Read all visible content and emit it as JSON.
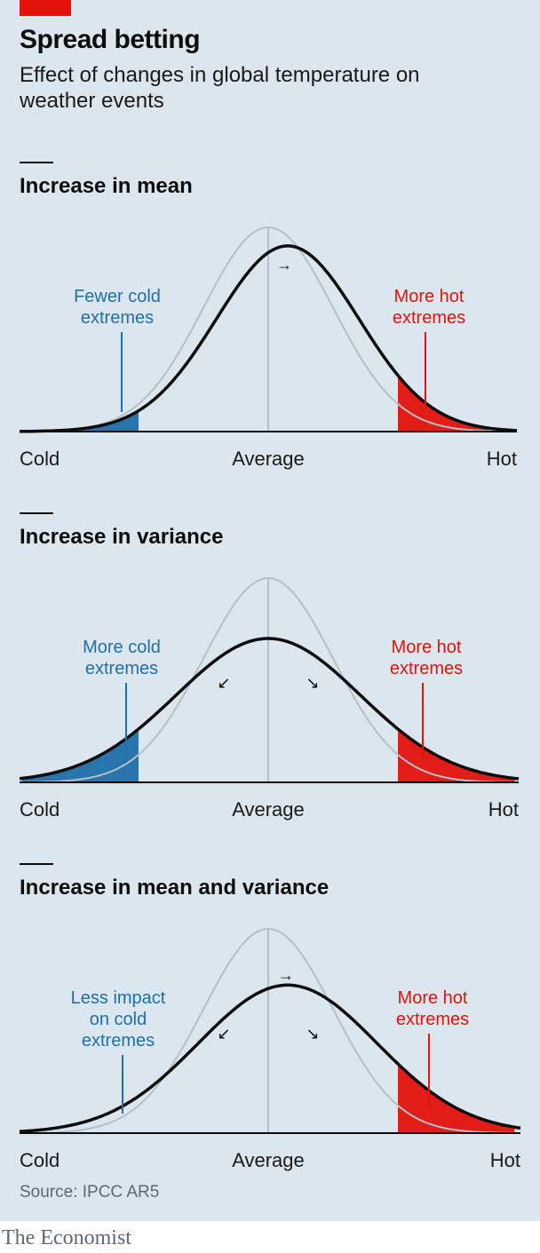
{
  "title": "Spread betting",
  "subtitle": "Effect of changes in global temperature on weather events",
  "source": "Source: IPCC AR5",
  "brand": "The Economist",
  "colors": {
    "background": "#dbe6ee",
    "baseline_curve": "#b3c0c8",
    "new_curve": "#0d0d0d",
    "cold": "#1f6fa8",
    "hot": "#e3120b",
    "accent_tag": "#e3120b"
  },
  "chart_data": [
    {
      "type": "area",
      "title": "Increase in mean",
      "x_tick_labels": [
        "Cold",
        "Average",
        "Hot"
      ],
      "baseline_distribution": {
        "mean": 0,
        "sd": 1
      },
      "shifted_distribution": {
        "mean": 0.3,
        "sd": 1.1
      },
      "arrows": [
        "→"
      ],
      "annotations": [
        {
          "side": "cold",
          "text": [
            "Fewer cold",
            "extremes"
          ]
        },
        {
          "side": "hot",
          "text": [
            "More hot",
            "extremes"
          ]
        }
      ]
    },
    {
      "type": "area",
      "title": "Increase in variance",
      "x_tick_labels": [
        "Cold",
        "Average",
        "Hot"
      ],
      "baseline_distribution": {
        "mean": 0,
        "sd": 1
      },
      "shifted_distribution": {
        "mean": 0,
        "sd": 1.42
      },
      "arrows": [
        "↙",
        "↘"
      ],
      "annotations": [
        {
          "side": "cold",
          "text": [
            "More cold",
            "extremes"
          ]
        },
        {
          "side": "hot",
          "text": [
            "More hot",
            "extremes"
          ]
        }
      ]
    },
    {
      "type": "area",
      "title": "Increase in mean and variance",
      "x_tick_labels": [
        "Cold",
        "Average",
        "Hot"
      ],
      "baseline_distribution": {
        "mean": 0,
        "sd": 1
      },
      "shifted_distribution": {
        "mean": 0.3,
        "sd": 1.38
      },
      "arrows": [
        "→",
        "↙",
        "↘"
      ],
      "annotations": [
        {
          "side": "cold",
          "text": [
            "Less impact",
            "on cold",
            "extremes"
          ]
        },
        {
          "side": "hot",
          "text": [
            "More hot",
            "extremes"
          ]
        }
      ]
    }
  ]
}
